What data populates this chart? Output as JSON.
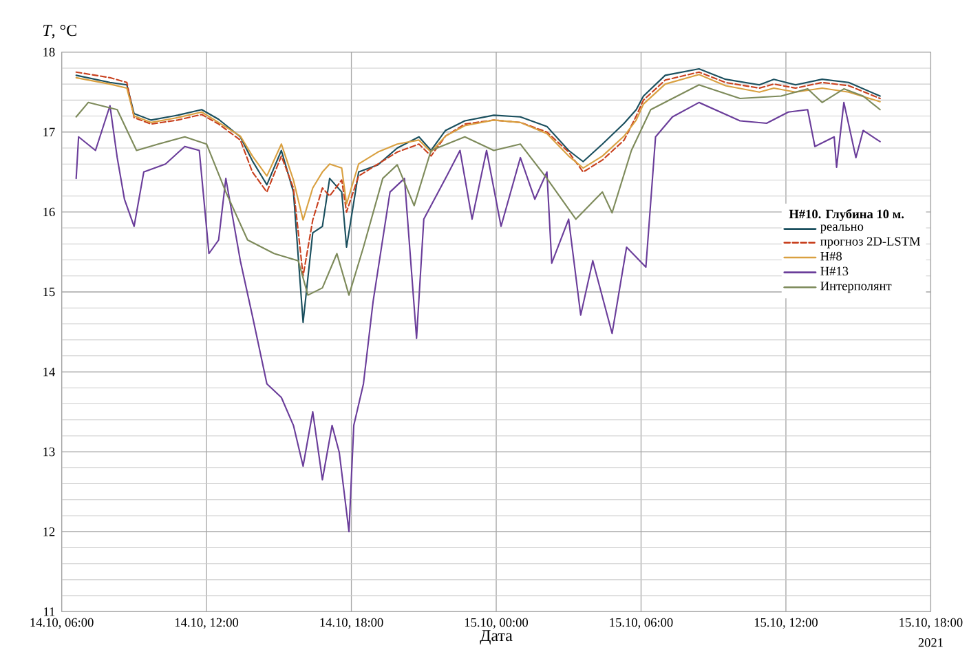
{
  "chart_data": {
    "type": "line",
    "xlabel": "Дата",
    "ylabel": "*T*, °C",
    "legend_title": "**Н#10. Глубина 10 м.**",
    "annotations": [
      "2021"
    ],
    "xlim": [
      "2021-10-14T06:00",
      "2021-10-15T18:00"
    ],
    "ylim": [
      11,
      18
    ],
    "xticks": [
      {
        "value": "2021-10-14T06:00",
        "label": "14.10, 06:00"
      },
      {
        "value": "2021-10-14T12:00",
        "label": "14.10, 12:00"
      },
      {
        "value": "2021-10-14T18:00",
        "label": "14.10, 18:00"
      },
      {
        "value": "2021-10-15T00:00",
        "label": "15.10, 00:00"
      },
      {
        "value": "2021-10-15T06:00",
        "label": "15.10, 06:00"
      },
      {
        "value": "2021-10-15T12:00",
        "label": "15.10, 12:00"
      },
      {
        "value": "2021-10-15T18:00",
        "label": "15.10, 18:00"
      }
    ],
    "yticks": [
      11,
      12,
      13,
      14,
      15,
      16,
      17,
      18
    ],
    "grid": true,
    "legend": "right",
    "marker": "none",
    "x": [
      "2021-10-14T06:36",
      "2021-10-14T08:00",
      "2021-10-14T08:42",
      "2021-10-14T09:00",
      "2021-10-14T09:42",
      "2021-10-14T10:48",
      "2021-10-14T11:48",
      "2021-10-14T12:30",
      "2021-10-14T13:24",
      "2021-10-14T13:54",
      "2021-10-14T14:30",
      "2021-10-14T15:06",
      "2021-10-14T15:36",
      "2021-10-14T16:00",
      "2021-10-14T16:24",
      "2021-10-14T16:48",
      "2021-10-14T17:06",
      "2021-10-14T17:36",
      "2021-10-14T17:48",
      "2021-10-14T18:18",
      "2021-10-14T19:06",
      "2021-10-14T19:54",
      "2021-10-14T20:48",
      "2021-10-14T21:18",
      "2021-10-14T21:54",
      "2021-10-14T22:42",
      "2021-10-14T23:54",
      "2021-10-15T01:00",
      "2021-10-15T02:06",
      "2021-10-15T03:00",
      "2021-10-15T03:36",
      "2021-10-15T04:24",
      "2021-10-15T05:18",
      "2021-10-15T05:48",
      "2021-10-15T06:06",
      "2021-10-15T07:00",
      "2021-10-15T08:24",
      "2021-10-15T09:30",
      "2021-10-15T10:54",
      "2021-10-15T11:30",
      "2021-10-15T12:24",
      "2021-10-15T13:30",
      "2021-10-15T14:36",
      "2021-10-15T15:54"
    ],
    "series": [
      {
        "name": "реально",
        "color": "#1a4f5e",
        "line_style": "solid",
        "values": [
          17.71,
          17.62,
          17.59,
          17.23,
          17.15,
          17.21,
          17.28,
          17.16,
          16.94,
          16.64,
          16.34,
          16.77,
          16.25,
          14.62,
          15.74,
          15.82,
          16.42,
          16.25,
          15.56,
          16.5,
          16.59,
          16.8,
          16.94,
          16.77,
          17.02,
          17.14,
          17.21,
          17.19,
          17.07,
          16.77,
          16.63,
          16.85,
          17.11,
          17.28,
          17.45,
          17.71,
          17.79,
          17.66,
          17.59,
          17.66,
          17.59,
          17.66,
          17.62,
          17.45
        ]
      },
      {
        "name": "прогноз 2D-LSTM",
        "color": "#c8401e",
        "line_style": "dashed",
        "values": [
          17.75,
          17.68,
          17.62,
          17.18,
          17.1,
          17.15,
          17.22,
          17.1,
          16.9,
          16.5,
          16.25,
          16.7,
          16.3,
          15.2,
          15.9,
          16.3,
          16.2,
          16.4,
          16.0,
          16.45,
          16.6,
          16.75,
          16.85,
          16.7,
          16.95,
          17.1,
          17.15,
          17.12,
          17.0,
          16.75,
          16.5,
          16.65,
          16.9,
          17.2,
          17.4,
          17.65,
          17.75,
          17.62,
          17.55,
          17.6,
          17.55,
          17.62,
          17.58,
          17.42
        ]
      },
      {
        "name": "Н#8",
        "color": "#d9a040",
        "line_style": "solid",
        "values": [
          17.68,
          17.6,
          17.55,
          17.2,
          17.12,
          17.18,
          17.25,
          17.12,
          16.95,
          16.7,
          16.45,
          16.85,
          16.4,
          15.9,
          16.3,
          16.5,
          16.6,
          16.55,
          16.1,
          16.6,
          16.75,
          16.85,
          16.9,
          16.75,
          16.95,
          17.08,
          17.15,
          17.12,
          16.98,
          16.7,
          16.55,
          16.7,
          16.95,
          17.15,
          17.35,
          17.6,
          17.72,
          17.58,
          17.5,
          17.55,
          17.5,
          17.55,
          17.5,
          17.38
        ]
      },
      {
        "name": "Н#13",
        "color": "#6a3d9a",
        "line_style": "solid",
        "x": [
          "2021-10-14T06:36",
          "2021-10-14T06:42",
          "2021-10-14T07:24",
          "2021-10-14T08:00",
          "2021-10-14T08:18",
          "2021-10-14T08:36",
          "2021-10-14T09:00",
          "2021-10-14T09:24",
          "2021-10-14T10:18",
          "2021-10-14T11:06",
          "2021-10-14T11:42",
          "2021-10-14T12:06",
          "2021-10-14T12:30",
          "2021-10-14T12:48",
          "2021-10-14T13:24",
          "2021-10-14T13:54",
          "2021-10-14T14:30",
          "2021-10-14T15:06",
          "2021-10-14T15:36",
          "2021-10-14T16:00",
          "2021-10-14T16:24",
          "2021-10-14T16:48",
          "2021-10-14T17:12",
          "2021-10-14T17:30",
          "2021-10-14T17:54",
          "2021-10-14T18:06",
          "2021-10-14T18:30",
          "2021-10-14T18:54",
          "2021-10-14T19:36",
          "2021-10-14T20:12",
          "2021-10-14T20:42",
          "2021-10-14T21:00",
          "2021-10-14T21:54",
          "2021-10-14T22:30",
          "2021-10-14T23:00",
          "2021-10-14T23:36",
          "2021-10-15T00:12",
          "2021-10-15T01:00",
          "2021-10-15T01:36",
          "2021-10-15T02:06",
          "2021-10-15T02:18",
          "2021-10-15T03:00",
          "2021-10-15T03:30",
          "2021-10-15T04:00",
          "2021-10-15T04:48",
          "2021-10-15T05:24",
          "2021-10-15T06:12",
          "2021-10-15T06:36",
          "2021-10-15T07:18",
          "2021-10-15T08:24",
          "2021-10-15T10:06",
          "2021-10-15T11:12",
          "2021-10-15T12:06",
          "2021-10-15T12:54",
          "2021-10-15T13:12",
          "2021-10-15T14:00",
          "2021-10-15T14:06",
          "2021-10-15T14:24",
          "2021-10-15T14:54",
          "2021-10-15T15:12",
          "2021-10-15T15:54"
        ],
        "values": [
          16.42,
          16.94,
          16.77,
          17.33,
          16.68,
          16.16,
          15.82,
          16.5,
          16.6,
          16.82,
          16.77,
          15.48,
          15.65,
          16.42,
          15.39,
          14.7,
          13.85,
          13.68,
          13.33,
          12.82,
          13.5,
          12.65,
          13.33,
          12.99,
          12.0,
          13.33,
          13.85,
          14.88,
          16.25,
          16.42,
          14.42,
          15.91,
          16.42,
          16.77,
          15.91,
          16.77,
          15.82,
          16.68,
          16.16,
          16.5,
          15.36,
          15.91,
          14.71,
          15.39,
          14.48,
          15.56,
          15.31,
          16.94,
          17.19,
          17.37,
          17.14,
          17.11,
          17.25,
          17.28,
          16.82,
          16.94,
          16.56,
          17.37,
          16.68,
          17.02,
          16.88
        ]
      },
      {
        "name": "Интерполянт",
        "color": "#7d8a5a",
        "line_style": "solid",
        "x": [
          "2021-10-14T06:36",
          "2021-10-14T07:06",
          "2021-10-14T08:18",
          "2021-10-14T09:06",
          "2021-10-14T10:00",
          "2021-10-14T11:06",
          "2021-10-14T12:00",
          "2021-10-14T12:48",
          "2021-10-14T13:42",
          "2021-10-14T14:48",
          "2021-10-14T15:48",
          "2021-10-14T16:12",
          "2021-10-14T16:48",
          "2021-10-14T17:24",
          "2021-10-14T17:54",
          "2021-10-14T18:30",
          "2021-10-14T19:18",
          "2021-10-14T19:54",
          "2021-10-14T20:36",
          "2021-10-14T21:18",
          "2021-10-14T22:42",
          "2021-10-14T23:54",
          "2021-10-15T01:00",
          "2021-10-15T02:06",
          "2021-10-15T03:18",
          "2021-10-15T04:24",
          "2021-10-15T04:48",
          "2021-10-15T05:36",
          "2021-10-15T06:24",
          "2021-10-15T08:24",
          "2021-10-15T10:06",
          "2021-10-15T11:48",
          "2021-10-15T12:54",
          "2021-10-15T13:30",
          "2021-10-15T14:24",
          "2021-10-15T15:12",
          "2021-10-15T15:54"
        ],
        "values": [
          17.19,
          17.37,
          17.28,
          16.77,
          16.85,
          16.94,
          16.85,
          16.25,
          15.65,
          15.48,
          15.39,
          14.96,
          15.05,
          15.48,
          14.96,
          15.56,
          16.42,
          16.59,
          16.08,
          16.77,
          16.94,
          16.77,
          16.85,
          16.42,
          15.91,
          16.25,
          15.99,
          16.77,
          17.28,
          17.59,
          17.42,
          17.45,
          17.54,
          17.37,
          17.54,
          17.45,
          17.28
        ]
      }
    ]
  }
}
